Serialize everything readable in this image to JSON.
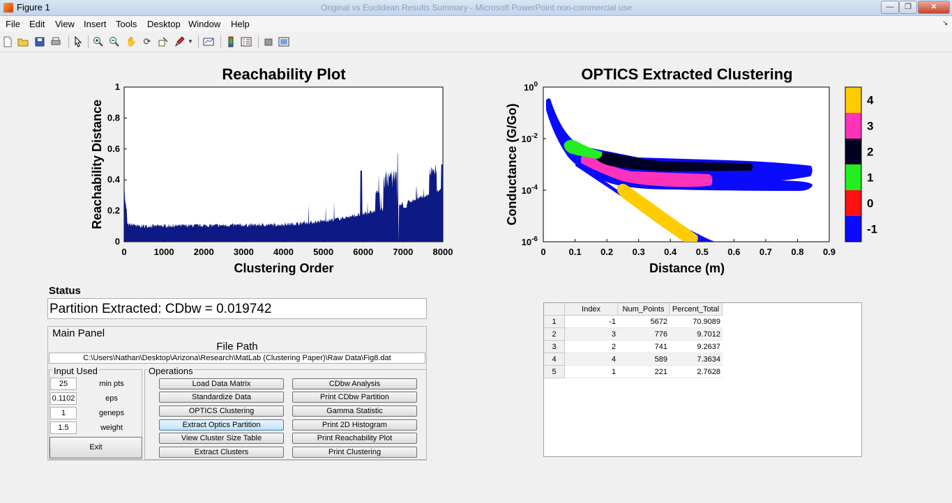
{
  "window": {
    "title": "Figure 1",
    "ghost_title": "Original vs Euclidean Results Summary - Microsoft PowerPoint non-commercial use",
    "min": "—",
    "max": "❐",
    "close": "✕"
  },
  "menu": [
    "File",
    "Edit",
    "View",
    "Insert",
    "Tools",
    "Desktop",
    "Window",
    "Help"
  ],
  "toolbar_icons": [
    "new-file",
    "open-folder",
    "save",
    "print",
    "pointer",
    "zoom-in",
    "zoom-out",
    "pan",
    "rotate-3d",
    "data-cursor",
    "brush",
    "brush-dropdown",
    "link-plot",
    "insert-colorbar",
    "insert-legend",
    "hide-plot-tools",
    "show-plot-tools"
  ],
  "reach_plot": {
    "title": "Reachability Plot",
    "xlabel": "Clustering Order",
    "ylabel": "Reachability Distance",
    "xticks": [
      "0",
      "1000",
      "2000",
      "3000",
      "4000",
      "5000",
      "6000",
      "7000",
      "8000"
    ],
    "yticks": [
      "0",
      "0.2",
      "0.4",
      "0.6",
      "0.8",
      "1"
    ],
    "color": "#0d1a85"
  },
  "optics_plot": {
    "title": "OPTICS Extracted Clustering",
    "xlabel": "Distance (m)",
    "ylabel": "Conductance (G/Go)",
    "xticks": [
      "0",
      "0.1",
      "0.2",
      "0.3",
      "0.4",
      "0.5",
      "0.6",
      "0.7",
      "0.8",
      "0.9"
    ],
    "yticks": [
      {
        "base": "10",
        "exp": "0"
      },
      {
        "base": "10",
        "exp": "-2"
      },
      {
        "base": "10",
        "exp": "-4"
      },
      {
        "base": "10",
        "exp": "-6"
      }
    ]
  },
  "colorbar": [
    {
      "label": "4",
      "color": "#ffcc00"
    },
    {
      "label": "3",
      "color": "#ff33bb"
    },
    {
      "label": "2",
      "color": "#000022"
    },
    {
      "label": "1",
      "color": "#22ee22"
    },
    {
      "label": "0",
      "color": "#ff1111"
    },
    {
      "label": "-1",
      "color": "#0a0aff"
    }
  ],
  "status": {
    "label": "Status",
    "text": "Partition Extracted: CDbw = 0.019742"
  },
  "main_panel": {
    "title": "Main Panel",
    "file_path_label": "File Path",
    "file_path": "C:\\Users\\Nathan\\Desktop\\Arizona\\Research\\MatLab (Clustering Paper)\\Raw Data\\Fig8.dat",
    "input_title": "Input Used",
    "inputs": [
      {
        "value": "25",
        "label": "min pts"
      },
      {
        "value": "0.1102",
        "label": "eps"
      },
      {
        "value": "1",
        "label": "geneps"
      },
      {
        "value": "1.5",
        "label": "weight"
      }
    ],
    "exit": "Exit",
    "ops_title": "Operations",
    "ops_left": [
      "Load Data Matrix",
      "Standardize Data",
      "OPTICS Clustering",
      "Extract Optics Partition",
      "View Cluster Size Table",
      "Extract Clusters"
    ],
    "ops_right": [
      "CDbw Analysis",
      "Print CDbw Partition",
      "Gamma Statistic",
      "Print 2D Histogram",
      "Print Reachability Plot",
      "Print Clustering"
    ]
  },
  "table": {
    "columns": [
      "Index",
      "Num_Points",
      "Percent_Total"
    ],
    "rows": [
      {
        "n": "1",
        "cells": [
          "-1",
          "5672",
          "70.9089"
        ]
      },
      {
        "n": "2",
        "cells": [
          "3",
          "776",
          "9.7012"
        ]
      },
      {
        "n": "3",
        "cells": [
          "2",
          "741",
          "9.2637"
        ]
      },
      {
        "n": "4",
        "cells": [
          "4",
          "589",
          "7.3634"
        ]
      },
      {
        "n": "5",
        "cells": [
          "1",
          "221",
          "2.7628"
        ]
      }
    ]
  }
}
